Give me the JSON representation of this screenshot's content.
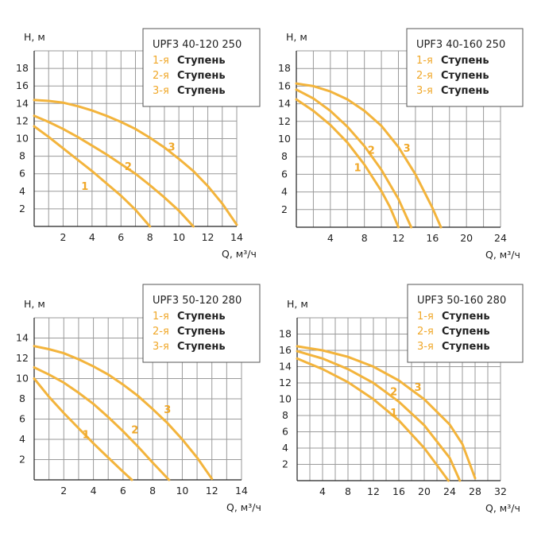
{
  "chart_data": [
    {
      "type": "line",
      "title": "UPF3 40-120 250",
      "ylabel": "H, м",
      "xlabel": "Q, м³/ч",
      "xlim": [
        0,
        14
      ],
      "ylim": [
        0,
        20
      ],
      "xticks": [
        2,
        4,
        6,
        8,
        10,
        12,
        14
      ],
      "yticks": [
        2,
        4,
        6,
        8,
        10,
        12,
        14,
        16,
        18
      ],
      "grid": true,
      "legend_position": "top-right",
      "legend": [
        {
          "num": "1-я",
          "word": "Ступень"
        },
        {
          "num": "2-я",
          "word": "Ступень"
        },
        {
          "num": "3-я",
          "word": "Ступень"
        }
      ],
      "series": [
        {
          "name": "1",
          "x": [
            0,
            1,
            2,
            3,
            4,
            5,
            6,
            7,
            8
          ],
          "y": [
            11.4,
            10.2,
            8.9,
            7.6,
            6.3,
            4.9,
            3.5,
            1.9,
            0
          ]
        },
        {
          "name": "2",
          "x": [
            0,
            1,
            2,
            3,
            4,
            5,
            6,
            7,
            8,
            9,
            10,
            11
          ],
          "y": [
            12.6,
            11.9,
            11.1,
            10.2,
            9.2,
            8.2,
            7.1,
            6.0,
            4.7,
            3.3,
            1.8,
            0
          ]
        },
        {
          "name": "3",
          "x": [
            0,
            1,
            2,
            3,
            4,
            5,
            6,
            7,
            8,
            9,
            10,
            11,
            12,
            13,
            14
          ],
          "y": [
            14.4,
            14.3,
            14.1,
            13.7,
            13.2,
            12.6,
            11.9,
            11.1,
            10.1,
            9.0,
            7.7,
            6.3,
            4.6,
            2.6,
            0.2
          ]
        }
      ],
      "curve_labels": [
        {
          "text": "1",
          "x": 3.5,
          "y": 4.6
        },
        {
          "text": "2",
          "x": 6.5,
          "y": 6.9
        },
        {
          "text": "3",
          "x": 9.5,
          "y": 9.1
        }
      ]
    },
    {
      "type": "line",
      "title": "UPF3 40-160 250",
      "ylabel": "H, м",
      "xlabel": "Q, м³/ч",
      "xlim": [
        0,
        24
      ],
      "ylim": [
        0,
        20
      ],
      "xticks": [
        4,
        8,
        12,
        16,
        20,
        24
      ],
      "yticks": [
        2,
        4,
        6,
        8,
        10,
        12,
        14,
        16,
        18
      ],
      "grid": true,
      "legend_position": "top-right",
      "legend": [
        {
          "num": "1-я",
          "word": "Ступень"
        },
        {
          "num": "2-я",
          "word": "Ступень"
        },
        {
          "num": "3-я",
          "word": "Ступень"
        }
      ],
      "series": [
        {
          "name": "1",
          "x": [
            0,
            2,
            4,
            6,
            8,
            10,
            11,
            12
          ],
          "y": [
            14.5,
            13.2,
            11.6,
            9.6,
            7.1,
            4.1,
            2.3,
            0
          ]
        },
        {
          "name": "2",
          "x": [
            0,
            2,
            4,
            6,
            8,
            10,
            12,
            13.5
          ],
          "y": [
            15.6,
            14.6,
            13.2,
            11.4,
            9.2,
            6.5,
            3.2,
            0
          ]
        },
        {
          "name": "3",
          "x": [
            0,
            2,
            4,
            6,
            8,
            10,
            12,
            14,
            16,
            17
          ],
          "y": [
            16.3,
            16.0,
            15.4,
            14.5,
            13.2,
            11.5,
            9.1,
            6.0,
            2.2,
            0
          ]
        }
      ],
      "curve_labels": [
        {
          "text": "1",
          "x": 7.2,
          "y": 6.8
        },
        {
          "text": "2",
          "x": 8.8,
          "y": 8.8
        },
        {
          "text": "3",
          "x": 13.0,
          "y": 9.0
        }
      ]
    },
    {
      "type": "line",
      "title": "UPF3 50-120 280",
      "ylabel": "H, м",
      "xlabel": "Q, м³/ч",
      "xlim": [
        0,
        14
      ],
      "ylim": [
        0,
        16
      ],
      "xticks": [
        2,
        4,
        6,
        8,
        10,
        12,
        14
      ],
      "yticks": [
        2,
        4,
        6,
        8,
        10,
        12,
        14
      ],
      "grid": true,
      "legend_position": "top-right",
      "legend": [
        {
          "num": "1-я",
          "word": "Ступень"
        },
        {
          "num": "2-я",
          "word": "Ступень"
        },
        {
          "num": "3-я",
          "word": "Ступень"
        }
      ],
      "series": [
        {
          "name": "1",
          "x": [
            0,
            1,
            2,
            3,
            4,
            5,
            6,
            6.6
          ],
          "y": [
            10.0,
            8.2,
            6.6,
            5.1,
            3.6,
            2.2,
            0.8,
            0
          ]
        },
        {
          "name": "2",
          "x": [
            0,
            1,
            2,
            3,
            4,
            5,
            6,
            7,
            8,
            9.1
          ],
          "y": [
            11.1,
            10.4,
            9.6,
            8.6,
            7.5,
            6.2,
            4.8,
            3.3,
            1.7,
            0
          ]
        },
        {
          "name": "3",
          "x": [
            0,
            1,
            2,
            3,
            4,
            5,
            6,
            7,
            8,
            9,
            10,
            11,
            12
          ],
          "y": [
            13.2,
            12.9,
            12.5,
            11.9,
            11.2,
            10.4,
            9.4,
            8.3,
            7.0,
            5.6,
            4.0,
            2.2,
            0.1
          ]
        }
      ],
      "curve_labels": [
        {
          "text": "1",
          "x": 3.5,
          "y": 4.5
        },
        {
          "text": "2",
          "x": 6.8,
          "y": 5.0
        },
        {
          "text": "3",
          "x": 9.0,
          "y": 7.0
        }
      ]
    },
    {
      "type": "line",
      "title": "UPF3 50-160 280",
      "ylabel": "H, м",
      "xlabel": "Q, м³/ч",
      "xlim": [
        0,
        32
      ],
      "ylim": [
        0,
        20
      ],
      "xticks": [
        4,
        8,
        12,
        16,
        20,
        24,
        28,
        32
      ],
      "yticks": [
        2,
        4,
        6,
        8,
        10,
        12,
        14,
        16,
        18
      ],
      "grid": true,
      "legend_position": "top-right",
      "legend": [
        {
          "num": "1-я",
          "word": "Ступень"
        },
        {
          "num": "2-я",
          "word": "Ступень"
        },
        {
          "num": "3-я",
          "word": "Ступень"
        }
      ],
      "series": [
        {
          "name": "1",
          "x": [
            0,
            4,
            8,
            12,
            16,
            20,
            22,
            23.8
          ],
          "y": [
            15.0,
            13.7,
            12.1,
            10.0,
            7.4,
            4.0,
            1.9,
            0
          ]
        },
        {
          "name": "2",
          "x": [
            0,
            4,
            8,
            12,
            16,
            20,
            24,
            25.6
          ],
          "y": [
            15.9,
            15.0,
            13.7,
            12.0,
            9.7,
            6.8,
            2.8,
            0
          ]
        },
        {
          "name": "3",
          "x": [
            0,
            4,
            8,
            12,
            16,
            20,
            24,
            26,
            28
          ],
          "y": [
            16.5,
            16.0,
            15.2,
            14.0,
            12.3,
            10.0,
            6.9,
            4.5,
            0.3
          ]
        }
      ],
      "curve_labels": [
        {
          "text": "1",
          "x": 15.2,
          "y": 8.4
        },
        {
          "text": "2",
          "x": 15.2,
          "y": 11.0
        },
        {
          "text": "3",
          "x": 19.0,
          "y": 11.5
        }
      ]
    }
  ]
}
